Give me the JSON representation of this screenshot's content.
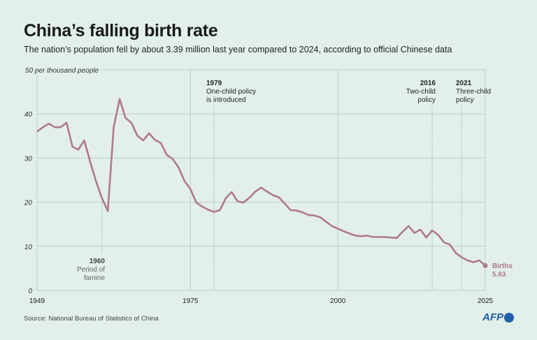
{
  "header": {
    "title": "China’s falling birth rate",
    "subtitle": "The nation’s population fell by about 3.39 million last year compared to 2024, according to official Chinese data"
  },
  "footer": {
    "source": "Source: National Bureau of Statistics of China",
    "logo": "AFP"
  },
  "chart_data": {
    "type": "line",
    "title": "China’s falling birth rate",
    "ylabel": "50 per thousand people",
    "ylim": [
      0,
      50
    ],
    "yticks": [
      "0",
      "10",
      "20",
      "30",
      "40"
    ],
    "xlim": [
      1949,
      2025
    ],
    "xticks": [
      "1949",
      "1975",
      "2000",
      "2025"
    ],
    "grid": true,
    "line_color": "#b07a88",
    "series": [
      {
        "name": "Births",
        "x": [
          1949,
          1950,
          1951,
          1952,
          1953,
          1954,
          1955,
          1956,
          1957,
          1958,
          1959,
          1960,
          1961,
          1962,
          1963,
          1964,
          1965,
          1966,
          1967,
          1968,
          1969,
          1970,
          1971,
          1972,
          1973,
          1974,
          1975,
          1976,
          1977,
          1978,
          1979,
          1980,
          1981,
          1982,
          1983,
          1984,
          1985,
          1986,
          1987,
          1988,
          1989,
          1990,
          1991,
          1992,
          1993,
          1994,
          1995,
          1996,
          1997,
          1998,
          1999,
          2000,
          2001,
          2002,
          2003,
          2004,
          2005,
          2006,
          2007,
          2008,
          2009,
          2010,
          2011,
          2012,
          2013,
          2014,
          2015,
          2016,
          2017,
          2018,
          2019,
          2020,
          2021,
          2022,
          2023,
          2024,
          2025
        ],
        "values": [
          36.0,
          37.0,
          37.8,
          37.0,
          37.0,
          38.0,
          32.6,
          31.9,
          34.0,
          29.2,
          24.8,
          20.9,
          18.0,
          37.0,
          43.4,
          39.1,
          38.0,
          35.1,
          34.0,
          35.6,
          34.1,
          33.4,
          30.7,
          29.8,
          27.9,
          24.8,
          23.0,
          19.9,
          19.0,
          18.3,
          17.8,
          18.2,
          20.9,
          22.3,
          20.2,
          19.9,
          21.0,
          22.4,
          23.3,
          22.4,
          21.6,
          21.1,
          19.7,
          18.2,
          18.1,
          17.7,
          17.1,
          17.0,
          16.6,
          15.6,
          14.6,
          14.0,
          13.4,
          12.9,
          12.4,
          12.3,
          12.4,
          12.1,
          12.1,
          12.1,
          12.0,
          11.9,
          13.3,
          14.6,
          13.0,
          13.8,
          12.0,
          13.6,
          12.6,
          10.9,
          10.4,
          8.5,
          7.5,
          6.8,
          6.4,
          6.8,
          5.63
        ]
      }
    ],
    "end_label": {
      "name": "Births",
      "value": "5.63"
    },
    "annotations": [
      {
        "year": 1960,
        "label": "1960",
        "text1": "Period of",
        "text2": "famine"
      },
      {
        "year": 1979,
        "label": "1979",
        "text1": "One-child policy",
        "text2": "is introduced"
      },
      {
        "year": 2016,
        "label": "2016",
        "text1": "Two-child",
        "text2": "policy"
      },
      {
        "year": 2021,
        "label": "2021",
        "text1": "Three-child",
        "text2": "policy"
      }
    ]
  }
}
